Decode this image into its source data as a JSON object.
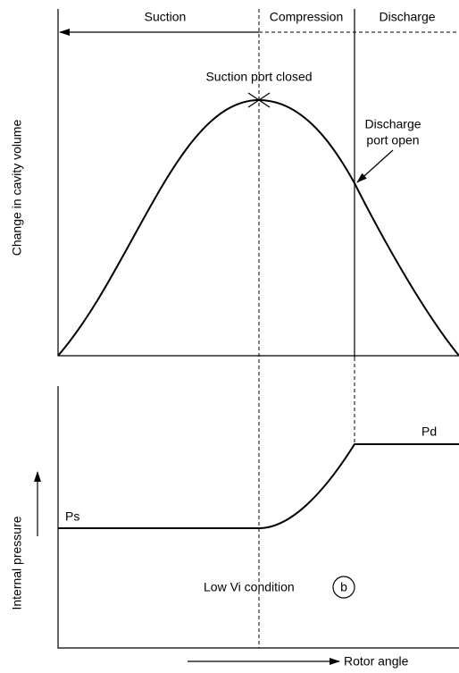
{
  "phases": [
    "Suction",
    "Compression",
    "Discharge"
  ],
  "annotations": {
    "suction_port": "Suction port closed",
    "discharge_port": [
      "Discharge",
      "port open"
    ]
  },
  "axes": {
    "upper_y": "Change in cavity volume",
    "lower_y": "Internal pressure",
    "x": "Rotor angle"
  },
  "pressures": {
    "suction": "Ps",
    "discharge": "Pd"
  },
  "condition": {
    "label": "Low Vi condition",
    "marker": "b"
  }
}
